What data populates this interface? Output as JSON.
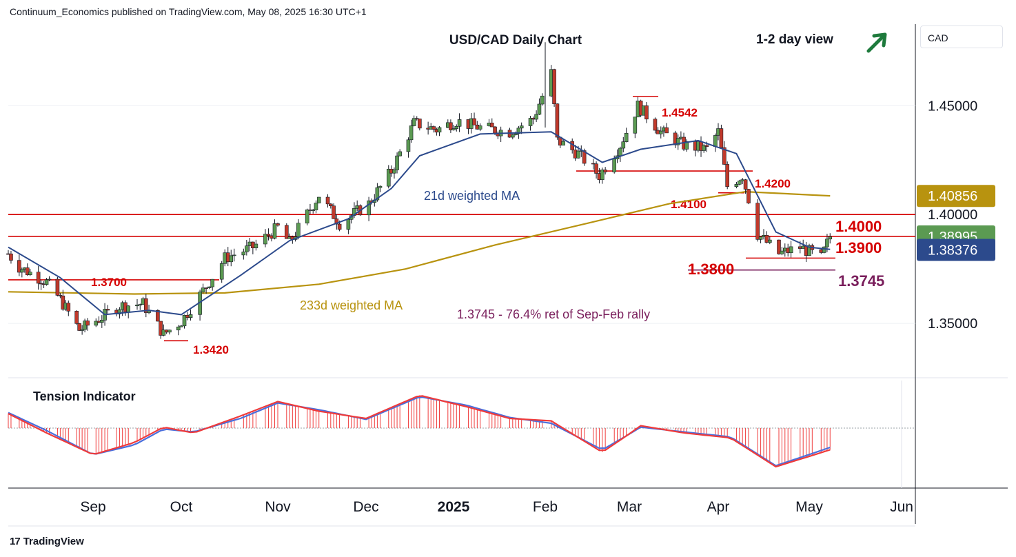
{
  "header": {
    "published": "Continuum_Economics published on TradingView.com, May 08, 2025 16:30 UTC+1"
  },
  "footer": {
    "brand": "TradingView",
    "logo": "tradingview-logo-icon"
  },
  "currency_label": "CAD",
  "view": {
    "label": "1-2 day view",
    "direction_icon": "arrow-up-right-icon",
    "arrow_color": "#1e7a3c"
  },
  "colors": {
    "up": "#5b9a52",
    "down": "#c0392b",
    "wick": "#131722",
    "ma21": "#2c4a8c",
    "ma233": "#b8930f",
    "level": "#d50000",
    "fib": "#7a1f5c",
    "tension_fast": "#ef3b3b",
    "tension_slow": "#4a6fdc"
  },
  "chart_data": [
    {
      "type": "candlestick",
      "title": "USD/CAD Daily Chart",
      "ylim": [
        1.325,
        1.4875
      ],
      "x_ticks": [
        "Sep",
        "Oct",
        "Nov",
        "Dec",
        "2025",
        "Feb",
        "Mar",
        "Apr",
        "May",
        "Jun"
      ],
      "y_ticks": [
        "1.45000",
        "1.40000",
        "1.35000"
      ],
      "price_labels": [
        {
          "text": "1.40856",
          "value": 1.40856,
          "bg": "#b8930f",
          "fg": "#ffffff"
        },
        {
          "text": "1.38995",
          "value": 1.38995,
          "bg": "#5b9a52",
          "fg": "#ffffff"
        },
        {
          "text": "1.38376",
          "value": 1.38376,
          "bg": "#2c4a8c",
          "fg": "#ffffff"
        }
      ],
      "levels": [
        {
          "value": 1.4,
          "label": "1.4000",
          "span": "full"
        },
        {
          "value": 1.39,
          "label": "1.3900",
          "span": "full"
        },
        {
          "value": 1.37,
          "label": "1.3700",
          "span": "left"
        },
        {
          "value": 1.4542,
          "label": "1.4542",
          "span": "short"
        },
        {
          "value": 1.42,
          "label": "1.4200",
          "span": "mid"
        },
        {
          "value": 1.41,
          "label": "1.4100",
          "span": "mid"
        },
        {
          "value": 1.38,
          "label": "1.3800",
          "span": "right"
        },
        {
          "value": 1.342,
          "label": "1.3420",
          "span": "short"
        },
        {
          "value": 1.3745,
          "label": "1.3745",
          "span": "right"
        }
      ],
      "annotations": {
        "ma21": "21d weighted MA",
        "ma233": "233d weighted MA",
        "fib": "1.3745 - 76.4% ret of Sep-Feb rally"
      },
      "ohlc_points": [
        {
          "date": "2024-08-01",
          "close": 1.382
        },
        {
          "date": "2024-08-05",
          "close": 1.376
        },
        {
          "date": "2024-08-15",
          "close": 1.369
        },
        {
          "date": "2024-08-20",
          "close": 1.361
        },
        {
          "date": "2024-08-27",
          "close": 1.347
        },
        {
          "date": "2024-09-03",
          "close": 1.352
        },
        {
          "date": "2024-09-10",
          "close": 1.358
        },
        {
          "date": "2024-09-18",
          "close": 1.359
        },
        {
          "date": "2024-09-25",
          "close": 1.345
        },
        {
          "date": "2024-10-01",
          "close": 1.351
        },
        {
          "date": "2024-10-08",
          "close": 1.365
        },
        {
          "date": "2024-10-15",
          "close": 1.38
        },
        {
          "date": "2024-10-24",
          "close": 1.385
        },
        {
          "date": "2024-11-01",
          "close": 1.394
        },
        {
          "date": "2024-11-05",
          "close": 1.387
        },
        {
          "date": "2024-11-15",
          "close": 1.409
        },
        {
          "date": "2024-11-22",
          "close": 1.396
        },
        {
          "date": "2024-12-02",
          "close": 1.405
        },
        {
          "date": "2024-12-10",
          "close": 1.42
        },
        {
          "date": "2024-12-18",
          "close": 1.442
        },
        {
          "date": "2024-12-26",
          "close": 1.439
        },
        {
          "date": "2025-01-02",
          "close": 1.443
        },
        {
          "date": "2025-01-10",
          "close": 1.44
        },
        {
          "date": "2025-01-20",
          "close": 1.438
        },
        {
          "date": "2025-01-28",
          "close": 1.444
        },
        {
          "date": "2025-02-03",
          "close": 1.465
        },
        {
          "date": "2025-02-05",
          "close": 1.434
        },
        {
          "date": "2025-02-12",
          "close": 1.428
        },
        {
          "date": "2025-02-19",
          "close": 1.418
        },
        {
          "date": "2025-02-26",
          "close": 1.432
        },
        {
          "date": "2025-03-04",
          "close": 1.45
        },
        {
          "date": "2025-03-12",
          "close": 1.438
        },
        {
          "date": "2025-03-20",
          "close": 1.432
        },
        {
          "date": "2025-03-28",
          "close": 1.43
        },
        {
          "date": "2025-04-01",
          "close": 1.438
        },
        {
          "date": "2025-04-04",
          "close": 1.413
        },
        {
          "date": "2025-04-09",
          "close": 1.418
        },
        {
          "date": "2025-04-14",
          "close": 1.391
        },
        {
          "date": "2025-04-21",
          "close": 1.382
        },
        {
          "date": "2025-04-28",
          "close": 1.385
        },
        {
          "date": "2025-05-05",
          "close": 1.38
        },
        {
          "date": "2025-05-08",
          "close": 1.39
        }
      ],
      "ma21_points": [
        {
          "date": "2024-08-01",
          "value": 1.385
        },
        {
          "date": "2024-08-20",
          "value": 1.371
        },
        {
          "date": "2024-09-05",
          "value": 1.354
        },
        {
          "date": "2024-09-20",
          "value": 1.356
        },
        {
          "date": "2024-10-01",
          "value": 1.354
        },
        {
          "date": "2024-10-20",
          "value": 1.372
        },
        {
          "date": "2024-11-05",
          "value": 1.388
        },
        {
          "date": "2024-11-25",
          "value": 1.398
        },
        {
          "date": "2024-12-10",
          "value": 1.412
        },
        {
          "date": "2024-12-20",
          "value": 1.427
        },
        {
          "date": "2025-01-10",
          "value": 1.437
        },
        {
          "date": "2025-02-03",
          "value": 1.438
        },
        {
          "date": "2025-02-20",
          "value": 1.424
        },
        {
          "date": "2025-03-05",
          "value": 1.43
        },
        {
          "date": "2025-03-25",
          "value": 1.434
        },
        {
          "date": "2025-04-07",
          "value": 1.428
        },
        {
          "date": "2025-04-20",
          "value": 1.392
        },
        {
          "date": "2025-05-01",
          "value": 1.385
        },
        {
          "date": "2025-05-08",
          "value": 1.384
        }
      ],
      "ma233_points": [
        {
          "date": "2024-08-01",
          "value": 1.3645
        },
        {
          "date": "2024-09-15",
          "value": 1.3635
        },
        {
          "date": "2024-10-15",
          "value": 1.364
        },
        {
          "date": "2024-11-15",
          "value": 1.368
        },
        {
          "date": "2024-12-15",
          "value": 1.375
        },
        {
          "date": "2025-01-15",
          "value": 1.386
        },
        {
          "date": "2025-02-15",
          "value": 1.396
        },
        {
          "date": "2025-03-15",
          "value": 1.405
        },
        {
          "date": "2025-04-10",
          "value": 1.4105
        },
        {
          "date": "2025-05-08",
          "value": 1.4086
        }
      ]
    },
    {
      "type": "area",
      "title": "Tension Indicator",
      "zero_line": true,
      "ylim": [
        -1.0,
        1.0
      ],
      "series": [
        {
          "name": "",
          "role": "fast",
          "points": [
            [
              "2024-08-01",
              0.3
            ],
            [
              "2024-08-15",
              -0.1
            ],
            [
              "2024-09-01",
              -0.55
            ],
            [
              "2024-09-15",
              -0.3
            ],
            [
              "2024-09-25",
              0.02
            ],
            [
              "2024-10-05",
              -0.1
            ],
            [
              "2024-10-20",
              0.25
            ],
            [
              "2024-11-01",
              0.55
            ],
            [
              "2024-11-15",
              0.35
            ],
            [
              "2024-12-01",
              0.2
            ],
            [
              "2024-12-20",
              0.68
            ],
            [
              "2025-01-05",
              0.45
            ],
            [
              "2025-01-20",
              0.2
            ],
            [
              "2025-02-03",
              0.15
            ],
            [
              "2025-02-20",
              -0.5
            ],
            [
              "2025-03-05",
              0.05
            ],
            [
              "2025-03-20",
              -0.1
            ],
            [
              "2025-04-05",
              -0.2
            ],
            [
              "2025-04-20",
              -0.8
            ],
            [
              "2025-05-08",
              -0.45
            ]
          ]
        },
        {
          "name": "",
          "role": "slow",
          "points": [
            [
              "2024-08-01",
              0.32
            ],
            [
              "2024-08-15",
              -0.05
            ],
            [
              "2024-09-01",
              -0.55
            ],
            [
              "2024-09-15",
              -0.35
            ],
            [
              "2024-09-25",
              -0.02
            ],
            [
              "2024-10-05",
              -0.08
            ],
            [
              "2024-10-20",
              0.2
            ],
            [
              "2024-11-01",
              0.52
            ],
            [
              "2024-11-15",
              0.38
            ],
            [
              "2024-12-01",
              0.18
            ],
            [
              "2024-12-20",
              0.65
            ],
            [
              "2025-01-05",
              0.48
            ],
            [
              "2025-01-20",
              0.22
            ],
            [
              "2025-02-03",
              0.1
            ],
            [
              "2025-02-20",
              -0.45
            ],
            [
              "2025-03-05",
              0.02
            ],
            [
              "2025-03-20",
              -0.08
            ],
            [
              "2025-04-05",
              -0.18
            ],
            [
              "2025-04-20",
              -0.78
            ],
            [
              "2025-05-08",
              -0.4
            ]
          ]
        }
      ]
    }
  ]
}
